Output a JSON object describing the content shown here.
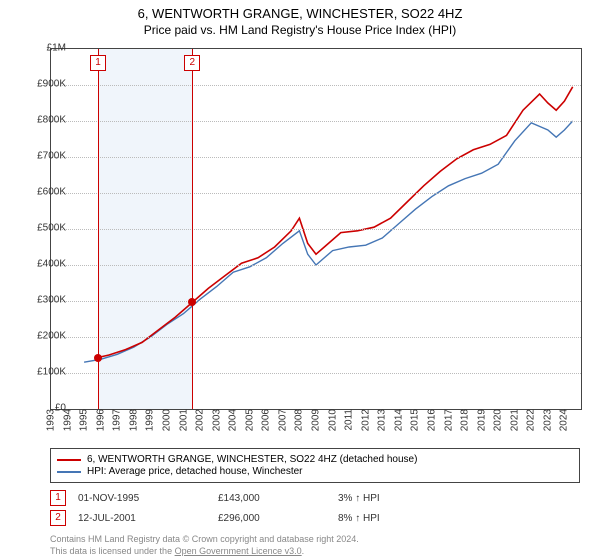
{
  "title": "6, WENTWORTH GRANGE, WINCHESTER, SO22 4HZ",
  "subtitle": "Price paid vs. HM Land Registry's House Price Index (HPI)",
  "chart": {
    "type": "line",
    "x_min": 1993,
    "x_max": 2025,
    "x_ticks": [
      1993,
      1994,
      1995,
      1996,
      1997,
      1998,
      1999,
      2000,
      2001,
      2002,
      2003,
      2004,
      2005,
      2006,
      2007,
      2008,
      2009,
      2010,
      2011,
      2012,
      2013,
      2014,
      2015,
      2016,
      2017,
      2018,
      2019,
      2020,
      2021,
      2022,
      2023,
      2024
    ],
    "y_min": 0,
    "y_max": 1000000,
    "y_ticks": [
      {
        "v": 0,
        "l": "£0"
      },
      {
        "v": 100000,
        "l": "£100K"
      },
      {
        "v": 200000,
        "l": "£200K"
      },
      {
        "v": 300000,
        "l": "£300K"
      },
      {
        "v": 400000,
        "l": "£400K"
      },
      {
        "v": 500000,
        "l": "£500K"
      },
      {
        "v": 600000,
        "l": "£600K"
      },
      {
        "v": 700000,
        "l": "£700K"
      },
      {
        "v": 800000,
        "l": "£800K"
      },
      {
        "v": 900000,
        "l": "£900K"
      },
      {
        "v": 1000000,
        "l": "£1M"
      }
    ],
    "background_color": "#ffffff",
    "grid_color": "#bbbbbb",
    "shaded_band": {
      "from": 1995.84,
      "to": 2001.53,
      "color": "#f0f5fb"
    },
    "series": [
      {
        "id": "property",
        "color": "#cc0000",
        "width": 1.6,
        "legend": "6, WENTWORTH GRANGE, WINCHESTER, SO22 4HZ (detached house)",
        "data": [
          [
            1995.84,
            143000
          ],
          [
            1996.5,
            150000
          ],
          [
            1997.5,
            165000
          ],
          [
            1998.5,
            185000
          ],
          [
            1999.5,
            220000
          ],
          [
            2000.5,
            255000
          ],
          [
            2001.53,
            296000
          ],
          [
            2002.5,
            335000
          ],
          [
            2003.5,
            370000
          ],
          [
            2004.5,
            405000
          ],
          [
            2005.5,
            420000
          ],
          [
            2006.5,
            450000
          ],
          [
            2007.5,
            495000
          ],
          [
            2008.0,
            530000
          ],
          [
            2008.5,
            460000
          ],
          [
            2009.0,
            430000
          ],
          [
            2009.5,
            450000
          ],
          [
            2010.5,
            490000
          ],
          [
            2011.5,
            495000
          ],
          [
            2012.5,
            505000
          ],
          [
            2013.5,
            530000
          ],
          [
            2014.5,
            575000
          ],
          [
            2015.5,
            620000
          ],
          [
            2016.5,
            660000
          ],
          [
            2017.5,
            695000
          ],
          [
            2018.5,
            720000
          ],
          [
            2019.5,
            735000
          ],
          [
            2020.5,
            760000
          ],
          [
            2021.5,
            830000
          ],
          [
            2022.5,
            875000
          ],
          [
            2023.0,
            850000
          ],
          [
            2023.5,
            830000
          ],
          [
            2024.0,
            855000
          ],
          [
            2024.5,
            895000
          ]
        ]
      },
      {
        "id": "hpi",
        "color": "#4576b5",
        "width": 1.4,
        "legend": "HPI: Average price, detached house, Winchester",
        "data": [
          [
            1995.0,
            130000
          ],
          [
            1996.0,
            138000
          ],
          [
            1997.0,
            152000
          ],
          [
            1998.0,
            172000
          ],
          [
            1999.0,
            200000
          ],
          [
            2000.0,
            235000
          ],
          [
            2001.0,
            265000
          ],
          [
            2002.0,
            305000
          ],
          [
            2003.0,
            340000
          ],
          [
            2004.0,
            380000
          ],
          [
            2005.0,
            395000
          ],
          [
            2006.0,
            420000
          ],
          [
            2007.0,
            460000
          ],
          [
            2008.0,
            495000
          ],
          [
            2008.5,
            430000
          ],
          [
            2009.0,
            400000
          ],
          [
            2010.0,
            440000
          ],
          [
            2011.0,
            450000
          ],
          [
            2012.0,
            455000
          ],
          [
            2013.0,
            475000
          ],
          [
            2014.0,
            515000
          ],
          [
            2015.0,
            555000
          ],
          [
            2016.0,
            590000
          ],
          [
            2017.0,
            620000
          ],
          [
            2018.0,
            640000
          ],
          [
            2019.0,
            655000
          ],
          [
            2020.0,
            680000
          ],
          [
            2021.0,
            745000
          ],
          [
            2022.0,
            795000
          ],
          [
            2023.0,
            775000
          ],
          [
            2023.5,
            755000
          ],
          [
            2024.0,
            775000
          ],
          [
            2024.5,
            800000
          ]
        ]
      }
    ],
    "markers": [
      {
        "n": "1",
        "x": 1995.84,
        "y": 143000,
        "color": "#cc0000"
      },
      {
        "n": "2",
        "x": 2001.53,
        "y": 296000,
        "color": "#cc0000"
      }
    ]
  },
  "sales": [
    {
      "n": "1",
      "date": "01-NOV-1995",
      "price": "£143,000",
      "pct": "3% ↑ HPI"
    },
    {
      "n": "2",
      "date": "12-JUL-2001",
      "price": "£296,000",
      "pct": "8% ↑ HPI"
    }
  ],
  "footer": {
    "l1a": "Contains HM Land Registry data © Crown copyright and database right 2024.",
    "l2a": "This data is licensed under the ",
    "l2b": "Open Government Licence v3.0",
    "l2c": "."
  }
}
